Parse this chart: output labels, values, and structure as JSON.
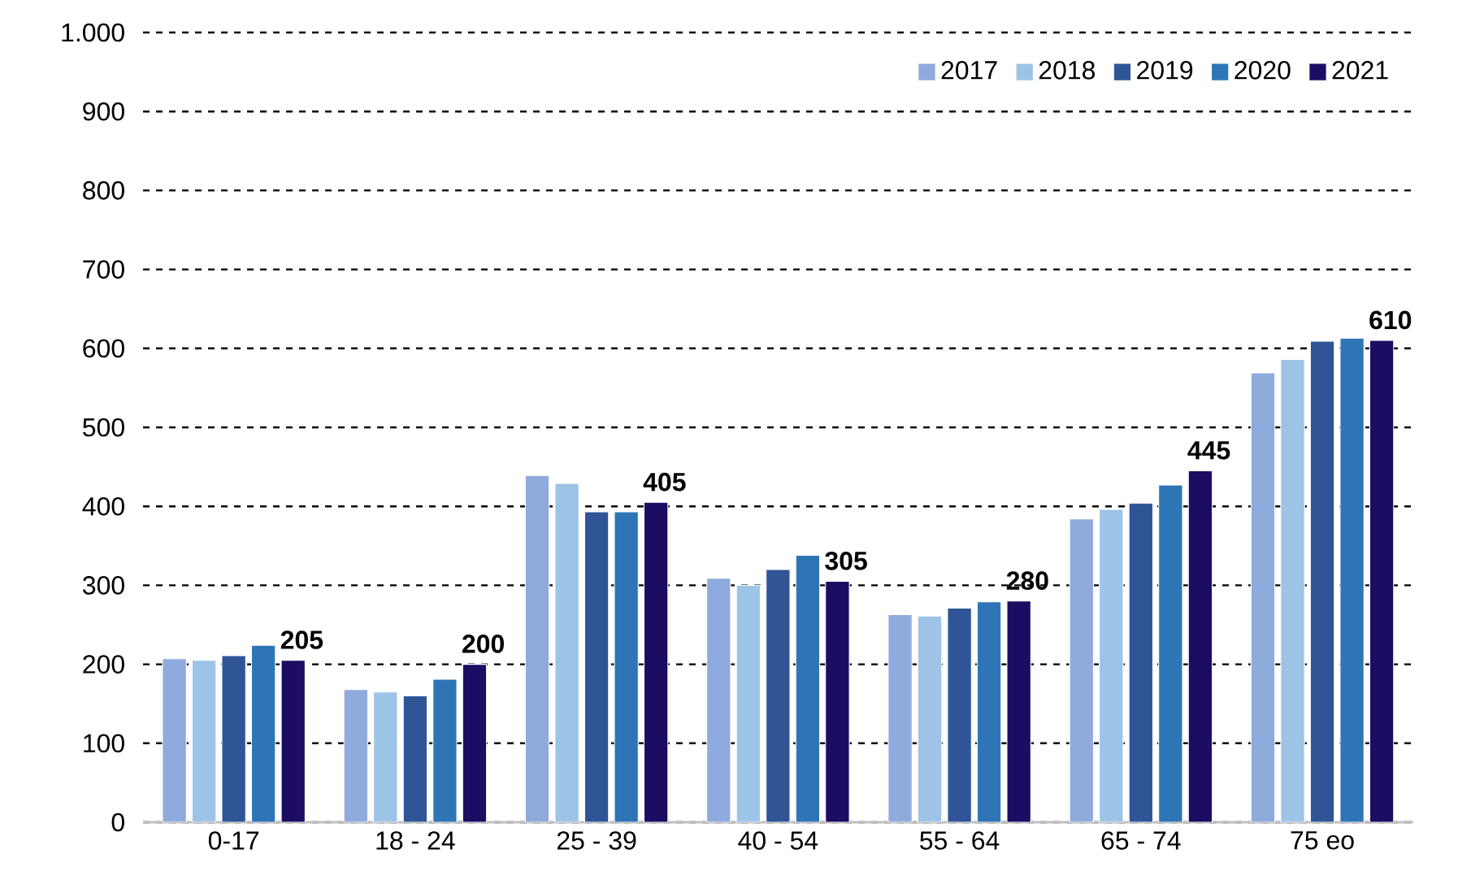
{
  "chart_data": {
    "type": "bar",
    "categories": [
      "0-17",
      "18 - 24",
      "25 - 39",
      "40 - 54",
      "55 - 64",
      "65 - 74",
      "75 eo"
    ],
    "series": [
      {
        "name": "2017",
        "color": "#8faadc",
        "values": [
          207,
          168,
          439,
          309,
          263,
          384,
          569
        ]
      },
      {
        "name": "2018",
        "color": "#9dc3e6",
        "values": [
          205,
          165,
          429,
          300,
          261,
          396,
          586
        ]
      },
      {
        "name": "2019",
        "color": "#2f5597",
        "values": [
          211,
          160,
          393,
          320,
          271,
          404,
          609
        ]
      },
      {
        "name": "2020",
        "color": "#2e75b6",
        "values": [
          224,
          181,
          393,
          338,
          279,
          427,
          613
        ]
      },
      {
        "name": "2021",
        "color": "#1c0c62",
        "values": [
          205,
          200,
          405,
          305,
          280,
          445,
          610
        ],
        "value_labels": [
          "205",
          "200",
          "405",
          "305",
          "280",
          "445",
          "610"
        ]
      }
    ],
    "ylim": [
      0,
      1000
    ],
    "yticks": [
      0,
      100,
      200,
      300,
      400,
      500,
      600,
      700,
      800,
      900,
      {
        "value": 1000,
        "label": "1.000"
      }
    ],
    "grid": "y",
    "legend": "top right"
  }
}
